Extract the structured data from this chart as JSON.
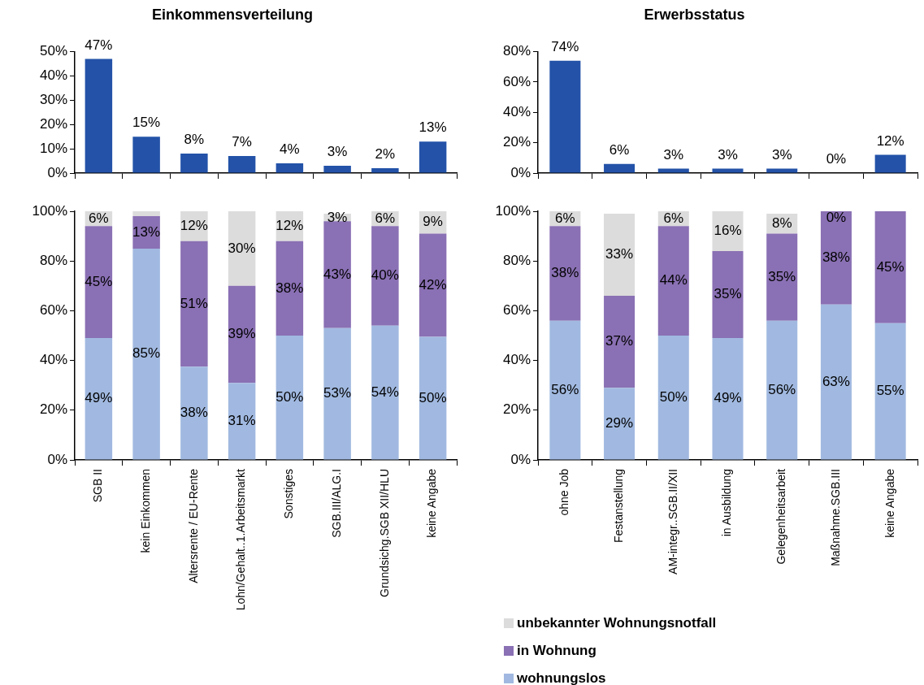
{
  "chart_data": [
    {
      "type": "bar",
      "title": "Einkommensverteilung",
      "categories": [
        null,
        null,
        null,
        null,
        null,
        null,
        null,
        null
      ],
      "values": [
        47,
        15,
        8,
        7,
        4,
        3,
        2,
        13
      ],
      "color": "#2352a8",
      "value_labels": [
        "47%",
        "15%",
        "8%",
        "7%",
        "4%",
        "3%",
        "2%",
        "13%"
      ],
      "ylim": [
        0,
        50
      ],
      "yticks": [
        {
          "value": 0,
          "label": "0%"
        },
        {
          "value": 10,
          "label": "10%"
        },
        {
          "value": 20,
          "label": "20%"
        },
        {
          "value": 30,
          "label": "30%"
        },
        {
          "value": 40,
          "label": "40%"
        },
        {
          "value": 50,
          "label": "50%"
        }
      ]
    },
    {
      "type": "bar",
      "title": "Erwerbsstatus",
      "categories": [
        null,
        null,
        null,
        null,
        null,
        null,
        null
      ],
      "values": [
        74,
        6,
        3,
        3,
        3,
        0,
        12
      ],
      "color": "#2352a8",
      "value_labels": [
        "74%",
        "6%",
        "3%",
        "3%",
        "3%",
        "0%",
        "12%"
      ],
      "ylim": [
        0,
        80
      ],
      "yticks": [
        {
          "value": 0,
          "label": "0%"
        },
        {
          "value": 20,
          "label": "20%"
        },
        {
          "value": 40,
          "label": "40%"
        },
        {
          "value": 60,
          "label": "60%"
        },
        {
          "value": 80,
          "label": "80%"
        }
      ]
    },
    {
      "type": "bar",
      "stacked": true,
      "categories": [
        "SGB II",
        "kein Einkommen",
        "Altersrente / EU-Rente",
        "Lohn/Gehalt..1.Arbeitsmarkt",
        "Sonstiges",
        "SGB.III/ALG.I",
        "Grundsichg.SGB XII/HLU",
        "keine Angabe"
      ],
      "series": [
        {
          "color": "#a1b9e0",
          "values": [
            49,
            85,
            37.5,
            31,
            50,
            53,
            54,
            49.5
          ],
          "value_labels": [
            "49%",
            "85%",
            "38%",
            "31%",
            "50%",
            "53%",
            "54%",
            "50%"
          ]
        },
        {
          "color": "#8a70b4",
          "values": [
            45,
            13,
            50.5,
            39,
            38,
            43,
            40,
            41.5
          ],
          "value_labels": [
            "45%",
            "13%",
            "51%",
            "39%",
            "38%",
            "43%",
            "40%",
            "42%"
          ]
        },
        {
          "color": "#dcdcdc",
          "values": [
            6,
            2,
            12,
            30,
            12,
            3,
            6,
            9
          ],
          "value_labels": [
            "6%",
            null,
            "12%",
            "30%",
            "12%",
            "3%",
            "6%",
            "9%"
          ]
        }
      ],
      "ylim": [
        0,
        100
      ],
      "yticks": [
        {
          "value": 0,
          "label": "0%"
        },
        {
          "value": 20,
          "label": "20%"
        },
        {
          "value": 40,
          "label": "40%"
        },
        {
          "value": 60,
          "label": "60%"
        },
        {
          "value": 80,
          "label": "80%"
        },
        {
          "value": 100,
          "label": "100%"
        }
      ]
    },
    {
      "type": "bar",
      "stacked": true,
      "legend": "bottom",
      "categories": [
        "ohne Job",
        "Festanstellung",
        "AM-integr..SGB.II/XII",
        "in Ausbildung",
        "Gelegenheitsarbeit",
        "Maßnahme.SGB.III",
        "keine Angabe"
      ],
      "series": [
        {
          "name": "wohnungslos",
          "color": "#a1b9e0",
          "values": [
            56,
            29,
            50,
            49,
            56,
            62.5,
            55
          ],
          "value_labels": [
            "56%",
            "29%",
            "50%",
            "49%",
            "56%",
            "63%",
            "55%"
          ]
        },
        {
          "name": "in Wohnung",
          "color": "#8a70b4",
          "values": [
            38,
            37,
            44,
            35,
            35,
            37.5,
            45
          ],
          "value_labels": [
            "38%",
            "37%",
            "44%",
            "35%",
            "35%",
            "38%",
            "45%"
          ]
        },
        {
          "name": "unbekannter Wohnungsnotfall",
          "color": "#dcdcdc",
          "values": [
            6,
            33,
            6,
            16,
            8,
            0,
            0
          ],
          "value_labels": [
            "6%",
            "33%",
            "6%",
            "16%",
            "8%",
            "0%",
            null
          ]
        }
      ],
      "ylim": [
        0,
        100
      ],
      "yticks": [
        {
          "value": 0,
          "label": "0%"
        },
        {
          "value": 20,
          "label": "20%"
        },
        {
          "value": 40,
          "label": "40%"
        },
        {
          "value": 60,
          "label": "60%"
        },
        {
          "value": 80,
          "label": "80%"
        },
        {
          "value": 100,
          "label": "100%"
        }
      ]
    }
  ]
}
